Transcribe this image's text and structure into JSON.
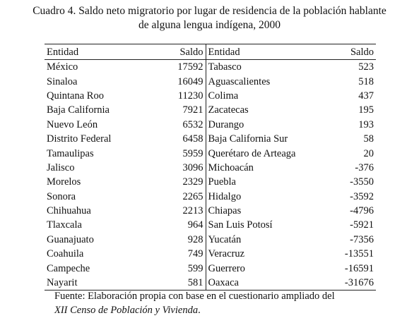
{
  "caption": {
    "line1": "Cuadro 4. Saldo neto migratorio por lugar de residencia de la población hablante",
    "line2": "de alguna lengua indígena, 2000"
  },
  "table": {
    "headers": [
      "Entidad",
      "Saldo",
      "Entidad",
      "Saldo"
    ],
    "rows": [
      [
        "México",
        "17592",
        "Tabasco",
        "523"
      ],
      [
        "Sinaloa",
        "16049",
        "Aguascalientes",
        "518"
      ],
      [
        "Quintana Roo",
        "11230",
        "Colima",
        "437"
      ],
      [
        "Baja California",
        "7921",
        "Zacatecas",
        "195"
      ],
      [
        "Nuevo León",
        "6532",
        "Durango",
        "193"
      ],
      [
        "Distrito Federal",
        "6458",
        "Baja California Sur",
        "58"
      ],
      [
        "Tamaulipas",
        "5959",
        "Querétaro de Arteaga",
        "20"
      ],
      [
        "Jalisco",
        "3096",
        "Michoacán",
        "-376"
      ],
      [
        "Morelos",
        "2329",
        "Puebla",
        "-3550"
      ],
      [
        "Sonora",
        "2265",
        "Hidalgo",
        "-3592"
      ],
      [
        "Chihuahua",
        "2213",
        "Chiapas",
        "-4796"
      ],
      [
        "Tlaxcala",
        "964",
        "San Luis Potosí",
        "-5921"
      ],
      [
        "Guanajuato",
        "928",
        "Yucatán",
        "-7356"
      ],
      [
        "Coahuila",
        "749",
        "Veracruz",
        "-13551"
      ],
      [
        "Campeche",
        "599",
        "Guerrero",
        "-16591"
      ],
      [
        "Nayarit",
        "581",
        "Oaxaca",
        "-31676"
      ]
    ]
  },
  "footer": {
    "line1": "Fuente: Elaboración propia con base en el cuestionario ampliado del",
    "line2_italic": "XII Censo de Población y Vivienda",
    "line2_end": "."
  }
}
